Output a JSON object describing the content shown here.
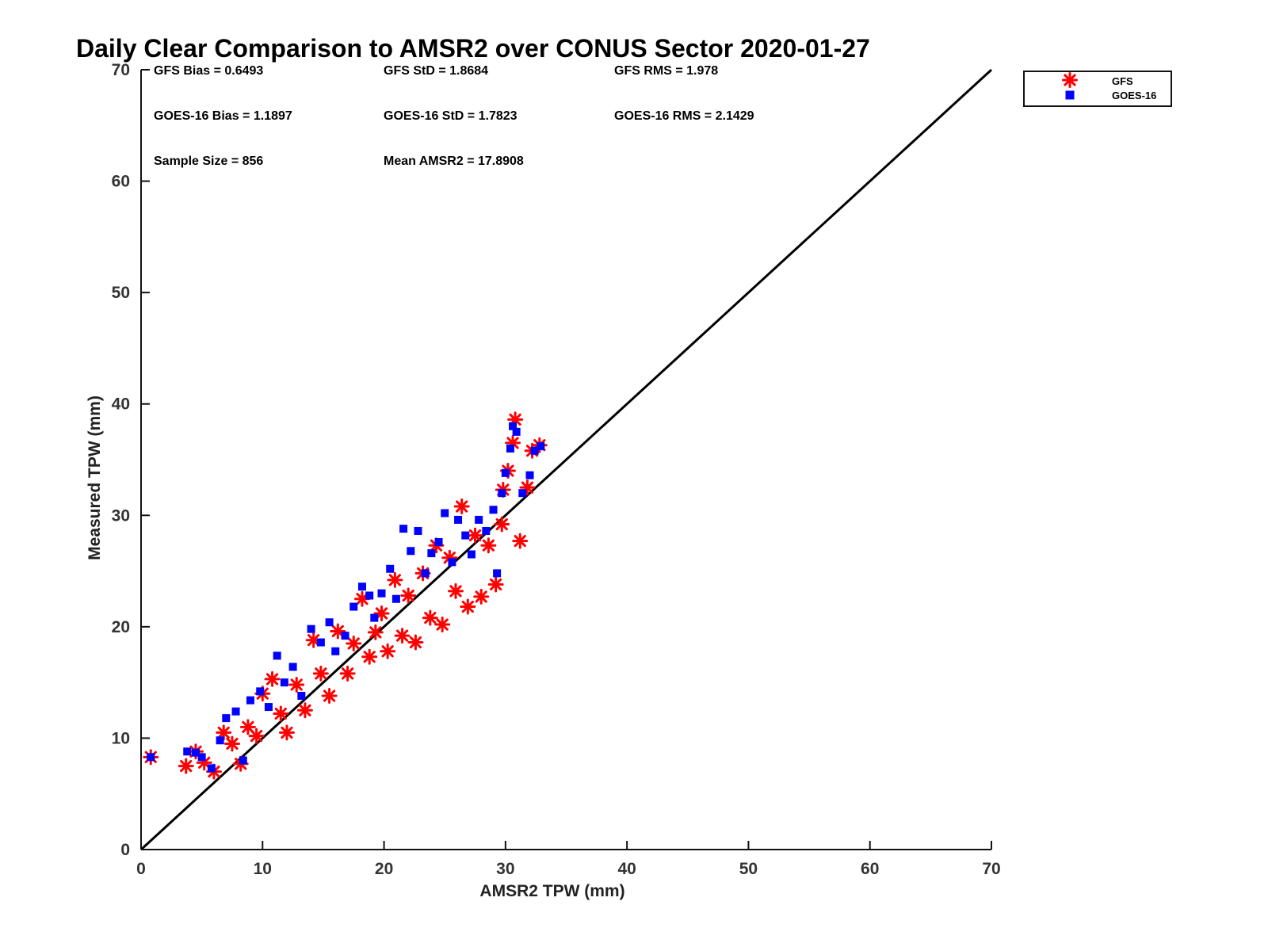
{
  "chart_data": {
    "type": "scatter",
    "title": "Daily Clear Comparison to AMSR2 over CONUS Sector 2020-01-27",
    "xlabel": "AMSR2 TPW (mm)",
    "ylabel": "Measured TPW (mm)",
    "xlim": [
      0,
      70
    ],
    "ylim": [
      0,
      70
    ],
    "xticks": [
      "0",
      "10",
      "20",
      "30",
      "40",
      "50",
      "60",
      "70"
    ],
    "yticks": [
      "0",
      "10",
      "20",
      "30",
      "40",
      "50",
      "60",
      "70"
    ],
    "grid": false,
    "legend_position": "top-right",
    "stats": {
      "gfs_bias": "GFS Bias = 0.6493",
      "gfs_std": "GFS StD = 1.8684",
      "gfs_rms": "GFS RMS = 1.978",
      "goes_bias": "GOES-16 Bias = 1.1897",
      "goes_std": "GOES-16 StD = 1.7823",
      "goes_rms": "GOES-16 RMS = 2.1429",
      "sample_size": "Sample Size = 856",
      "mean_amsr2": "Mean AMSR2 = 17.8908"
    },
    "series": [
      {
        "name": "GFS",
        "color": "#ff0000",
        "marker": "asterisk",
        "points": [
          [
            0.8,
            8.3
          ],
          [
            3.7,
            7.5
          ],
          [
            4.5,
            8.8
          ],
          [
            5.2,
            7.8
          ],
          [
            6.0,
            7.0
          ],
          [
            6.8,
            10.5
          ],
          [
            7.5,
            9.5
          ],
          [
            8.2,
            7.7
          ],
          [
            8.8,
            11.0
          ],
          [
            9.5,
            10.2
          ],
          [
            10.0,
            14.0
          ],
          [
            10.8,
            15.3
          ],
          [
            11.5,
            12.2
          ],
          [
            12.0,
            10.5
          ],
          [
            12.8,
            14.8
          ],
          [
            13.5,
            12.5
          ],
          [
            14.2,
            18.8
          ],
          [
            14.8,
            15.8
          ],
          [
            15.5,
            13.8
          ],
          [
            16.2,
            19.6
          ],
          [
            17.0,
            15.8
          ],
          [
            17.5,
            18.5
          ],
          [
            18.2,
            22.5
          ],
          [
            18.8,
            17.3
          ],
          [
            19.3,
            19.5
          ],
          [
            19.8,
            21.2
          ],
          [
            20.3,
            17.8
          ],
          [
            20.9,
            24.2
          ],
          [
            21.5,
            19.2
          ],
          [
            22.0,
            22.8
          ],
          [
            22.6,
            18.6
          ],
          [
            23.2,
            24.8
          ],
          [
            23.8,
            20.8
          ],
          [
            24.3,
            27.3
          ],
          [
            24.8,
            20.2
          ],
          [
            25.4,
            26.2
          ],
          [
            25.9,
            23.2
          ],
          [
            26.4,
            30.8
          ],
          [
            26.9,
            21.8
          ],
          [
            27.5,
            28.2
          ],
          [
            28.0,
            22.7
          ],
          [
            28.6,
            27.3
          ],
          [
            29.2,
            23.8
          ],
          [
            29.7,
            29.2
          ],
          [
            29.8,
            32.3
          ],
          [
            30.2,
            34.0
          ],
          [
            30.6,
            36.5
          ],
          [
            30.8,
            38.6
          ],
          [
            31.2,
            27.7
          ],
          [
            31.8,
            32.5
          ],
          [
            32.2,
            35.8
          ],
          [
            32.8,
            36.3
          ]
        ]
      },
      {
        "name": "GOES-16",
        "color": "#0000ff",
        "marker": "square",
        "points": [
          [
            0.8,
            8.3
          ],
          [
            3.8,
            8.8
          ],
          [
            4.5,
            8.7
          ],
          [
            5.0,
            8.3
          ],
          [
            5.8,
            7.3
          ],
          [
            6.5,
            9.8
          ],
          [
            7.0,
            11.8
          ],
          [
            7.8,
            12.4
          ],
          [
            8.4,
            8.0
          ],
          [
            9.0,
            13.4
          ],
          [
            9.8,
            14.2
          ],
          [
            10.5,
            12.8
          ],
          [
            11.2,
            17.4
          ],
          [
            11.8,
            15.0
          ],
          [
            12.5,
            16.4
          ],
          [
            13.2,
            13.8
          ],
          [
            14.0,
            19.8
          ],
          [
            14.8,
            18.6
          ],
          [
            15.5,
            20.4
          ],
          [
            16.0,
            17.8
          ],
          [
            16.8,
            19.2
          ],
          [
            17.5,
            21.8
          ],
          [
            18.2,
            23.6
          ],
          [
            18.8,
            22.8
          ],
          [
            19.2,
            20.8
          ],
          [
            19.8,
            23.0
          ],
          [
            20.5,
            25.2
          ],
          [
            21.0,
            22.5
          ],
          [
            21.6,
            28.8
          ],
          [
            22.2,
            26.8
          ],
          [
            22.8,
            28.6
          ],
          [
            23.4,
            24.8
          ],
          [
            23.9,
            26.6
          ],
          [
            24.5,
            27.6
          ],
          [
            25.0,
            30.2
          ],
          [
            25.6,
            25.8
          ],
          [
            26.1,
            29.6
          ],
          [
            26.7,
            28.2
          ],
          [
            27.2,
            26.5
          ],
          [
            27.8,
            29.6
          ],
          [
            28.4,
            28.6
          ],
          [
            29.0,
            30.5
          ],
          [
            29.3,
            24.8
          ],
          [
            29.7,
            32.0
          ],
          [
            30.0,
            33.8
          ],
          [
            30.4,
            36.0
          ],
          [
            30.6,
            38.0
          ],
          [
            30.9,
            37.5
          ],
          [
            31.4,
            32.0
          ],
          [
            32.0,
            33.6
          ],
          [
            32.4,
            35.8
          ],
          [
            32.9,
            36.2
          ]
        ]
      }
    ]
  }
}
